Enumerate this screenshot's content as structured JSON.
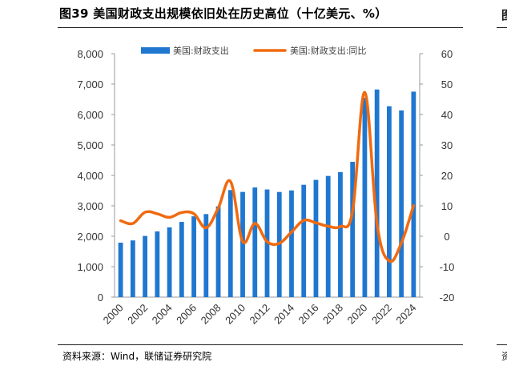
{
  "title": "图39 美国财政支出规模依旧处在历史高位（十亿美元、%）",
  "source": "资料来源：Wind，联储证券研究院",
  "next_panel": {
    "title_fragment": "图",
    "source_fragment": "资"
  },
  "chart_data": {
    "type": "bar",
    "categories": [
      "2000",
      "2001",
      "2002",
      "2003",
      "2004",
      "2005",
      "2006",
      "2007",
      "2008",
      "2009",
      "2010",
      "2011",
      "2012",
      "2013",
      "2014",
      "2015",
      "2016",
      "2017",
      "2018",
      "2019",
      "2020",
      "2021",
      "2022",
      "2023",
      "2024"
    ],
    "x_tick_labels": [
      "2000",
      "2002",
      "2004",
      "2006",
      "2008",
      "2010",
      "2012",
      "2014",
      "2016",
      "2018",
      "2020",
      "2022",
      "2024"
    ],
    "series": [
      {
        "name": "美国:财政支出",
        "type": "bar",
        "axis": "left",
        "color": "#1f77d0",
        "values": [
          1789,
          1863,
          2011,
          2160,
          2293,
          2472,
          2655,
          2729,
          2983,
          3518,
          3457,
          3603,
          3537,
          3455,
          3506,
          3692,
          3853,
          3982,
          4109,
          4447,
          6550,
          6822,
          6273,
          6135,
          6752
        ]
      },
      {
        "name": "美国:财政支出:同比",
        "type": "line",
        "axis": "right",
        "color": "#f06a0f",
        "values": [
          5.1,
          4.2,
          7.9,
          7.4,
          6.2,
          7.8,
          7.4,
          2.8,
          9.3,
          18.0,
          -1.7,
          4.2,
          -1.8,
          -2.3,
          1.4,
          5.2,
          4.4,
          3.3,
          3.2,
          8.2,
          47.3,
          4.2,
          -8.1,
          -2.2,
          10.1
        ]
      }
    ],
    "y_left": {
      "min": 0,
      "max": 8000,
      "ticks": [
        "0",
        "1,000",
        "2,000",
        "3,000",
        "4,000",
        "5,000",
        "6,000",
        "7,000",
        "8,000"
      ]
    },
    "y_right": {
      "min": -20,
      "max": 60,
      "ticks": [
        "-20",
        "-10",
        "0",
        "10",
        "20",
        "30",
        "40",
        "50",
        "60"
      ]
    },
    "legend": {
      "position": "top"
    },
    "grid": false
  }
}
